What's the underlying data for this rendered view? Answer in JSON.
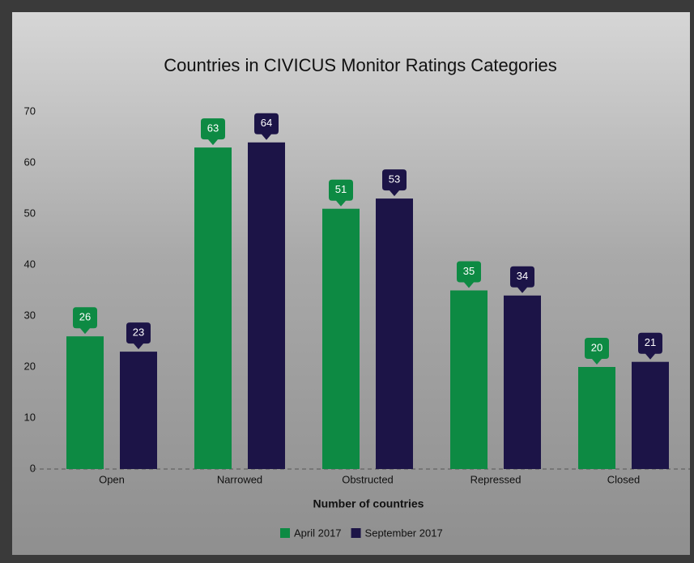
{
  "chart_data": {
    "type": "bar",
    "title": "Countries in CIVICUS Monitor Ratings Categories",
    "x_label": "Number of countries",
    "categories": [
      "Open",
      "Narrowed",
      "Obstructed",
      "Repressed",
      "Closed"
    ],
    "series": [
      {
        "name": "April 2017",
        "color": "#0d8a43",
        "values": [
          26,
          63,
          51,
          35,
          20
        ]
      },
      {
        "name": "September 2017",
        "color": "#1c1447",
        "values": [
          23,
          64,
          53,
          34,
          21
        ]
      }
    ],
    "ylim": [
      0,
      70
    ],
    "yticks": [
      0,
      10,
      20,
      30,
      40,
      50,
      60,
      70
    ],
    "legend": "bottom"
  }
}
